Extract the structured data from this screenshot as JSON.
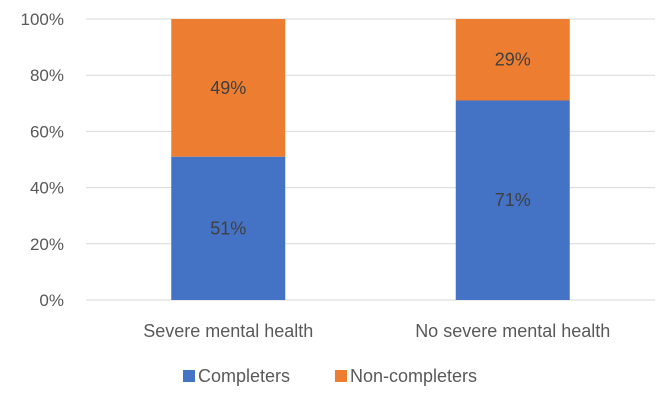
{
  "chart_data": {
    "type": "bar",
    "stacked": true,
    "percent": true,
    "categories": [
      "Severe mental health",
      "No severe mental health"
    ],
    "series": [
      {
        "name": "Completers",
        "values": [
          51,
          71
        ],
        "labels": [
          "51%",
          "71%"
        ],
        "color": "#4472C4"
      },
      {
        "name": "Non-completers",
        "values": [
          49,
          29
        ],
        "labels": [
          "49%",
          "29%"
        ],
        "color": "#ED7D31"
      }
    ],
    "ylim": [
      0,
      100
    ],
    "yticks": [
      0,
      20,
      40,
      60,
      80,
      100
    ],
    "ytick_labels": [
      "0%",
      "20%",
      "40%",
      "60%",
      "80%",
      "100%"
    ],
    "grid": true,
    "legend_position": "bottom"
  }
}
